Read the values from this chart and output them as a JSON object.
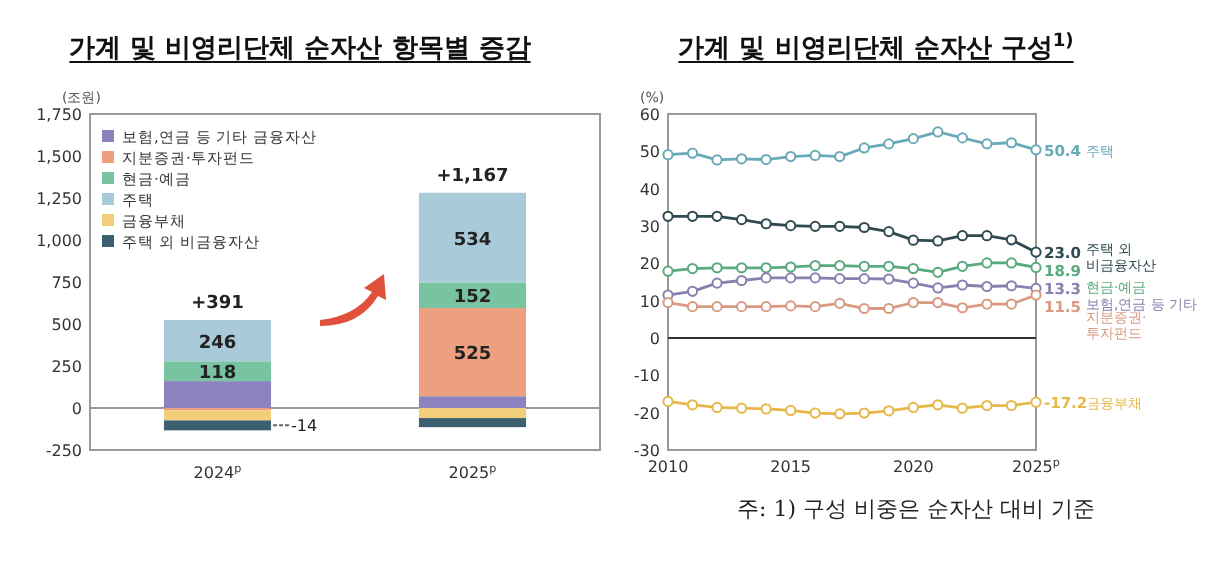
{
  "chart_data": [
    {
      "type": "bar",
      "title": "가계 및 비영리단체 순자산 항목별 증감",
      "ylabel": "(조원)",
      "stacked": true,
      "legend": "top left",
      "categories": [
        "2024$^{p}$",
        "2025$^{p}$"
      ],
      "ylim": [
        -250,
        1750
      ],
      "yticks": [
        {
          "value": -250,
          "label": "-250"
        },
        0,
        250,
        500,
        750,
        {
          "value": 1000,
          "label": "1,000"
        },
        {
          "value": 1250,
          "label": "1,250"
        },
        {
          "value": 1500,
          "label": "1,500"
        },
        {
          "value": 1750,
          "label": "1,750"
        }
      ],
      "ref_lines": [
        {
          "axis": "y",
          "value": 0,
          "color": "#999999"
        }
      ],
      "totals": [
        "+391",
        "+1,167"
      ],
      "series": [
        {
          "name": "보험,연금 등 기타 금융자산",
          "color": "#8d82c0",
          "values": [
            160,
            70
          ],
          "value_labels": [
            null,
            null
          ]
        },
        {
          "name": "지분증권·투자펀드",
          "color": "#eda07f",
          "values": [
            -14,
            525
          ],
          "value_labels": [
            "-14",
            "525"
          ]
        },
        {
          "name": "현금·예금",
          "color": "#78c3a0",
          "values": [
            118,
            152
          ],
          "value_labels": [
            "118",
            "152"
          ]
        },
        {
          "name": "주택",
          "color": "#a9cbd9",
          "values": [
            246,
            534
          ],
          "value_labels": [
            "246",
            "534"
          ]
        },
        {
          "name": "금융부채",
          "color": "#f2cd7a",
          "values": [
            -60,
            -60
          ],
          "value_labels": [
            null,
            null
          ]
        },
        {
          "name": "주택 외 비금융자산",
          "color": "#3d6070",
          "values": [
            -59,
            -54
          ],
          "value_labels": [
            null,
            null
          ]
        }
      ]
    },
    {
      "type": "line",
      "title": "가계 및 비영리단체 순자산 구성$^{1)}$",
      "ylabel": "(%)",
      "legend": false,
      "marker": "circle",
      "x": [
        2010,
        2011,
        2012,
        2013,
        2014,
        2015,
        2016,
        2017,
        2018,
        2019,
        2020,
        2021,
        2022,
        2023,
        2024,
        2025
      ],
      "xlim": [
        2010,
        2025
      ],
      "xticks": [
        2010,
        2015,
        2020,
        {
          "value": 2025,
          "label": "2025$^{p}$"
        }
      ],
      "ylim": [
        -30,
        60
      ],
      "yticks": [
        -30,
        -20,
        -10,
        0,
        10,
        20,
        30,
        40,
        50,
        60
      ],
      "ref_lines": [
        {
          "axis": "y",
          "value": 0,
          "color": "#333333"
        }
      ],
      "annotations": [
        "주: 1) 구성 비중은 순자산 대비 기준"
      ],
      "series": [
        {
          "name": "주택",
          "color": "#6aaab8",
          "values": [
            49.1,
            49.5,
            47.7,
            48.0,
            47.8,
            48.6,
            48.9,
            48.6,
            50.9,
            52.0,
            53.4,
            55.2,
            53.6,
            52.0,
            52.3,
            50.4
          ],
          "value_labels": [
            null,
            null,
            null,
            null,
            null,
            null,
            null,
            null,
            null,
            null,
            null,
            null,
            null,
            null,
            null,
            "50.4"
          ]
        },
        {
          "name": "주택 외\n비금융자산",
          "color": "#2f4a50",
          "values": [
            32.6,
            32.6,
            32.6,
            31.7,
            30.6,
            30.1,
            29.9,
            29.9,
            29.6,
            28.5,
            26.2,
            26.0,
            27.4,
            27.4,
            26.3,
            23.0
          ],
          "value_labels": [
            null,
            null,
            null,
            null,
            null,
            null,
            null,
            null,
            null,
            null,
            null,
            null,
            null,
            null,
            null,
            "23.0"
          ]
        },
        {
          "name": "현금·예금",
          "color": "#5aaa7e",
          "values": [
            17.9,
            18.6,
            18.8,
            18.8,
            18.8,
            19.0,
            19.4,
            19.4,
            19.2,
            19.2,
            18.6,
            17.6,
            19.2,
            20.1,
            20.1,
            18.9
          ],
          "value_labels": [
            null,
            null,
            null,
            null,
            null,
            null,
            null,
            null,
            null,
            null,
            null,
            null,
            null,
            null,
            null,
            "18.9"
          ]
        },
        {
          "name": "보험,연금 등 기타",
          "color": "#8a80b0",
          "values": [
            11.5,
            12.5,
            14.7,
            15.4,
            16.1,
            16.1,
            16.1,
            15.9,
            15.9,
            15.8,
            14.7,
            13.4,
            14.2,
            13.8,
            14.0,
            13.3
          ],
          "value_labels": [
            null,
            null,
            null,
            null,
            null,
            null,
            null,
            null,
            null,
            null,
            null,
            null,
            null,
            null,
            null,
            "13.3"
          ]
        },
        {
          "name": "지분증권·\n투자펀드",
          "color": "#d89a80",
          "values": [
            9.5,
            8.4,
            8.4,
            8.4,
            8.4,
            8.6,
            8.4,
            9.3,
            7.9,
            7.9,
            9.5,
            9.5,
            8.1,
            9.1,
            9.1,
            11.5
          ],
          "value_labels": [
            null,
            null,
            null,
            null,
            null,
            null,
            null,
            null,
            null,
            null,
            null,
            null,
            null,
            null,
            null,
            "11.5"
          ]
        },
        {
          "name": "금융부채",
          "color": "#e6b84a",
          "values": [
            -17.0,
            -17.9,
            -18.6,
            -18.8,
            -19.0,
            -19.4,
            -20.1,
            -20.3,
            -20.1,
            -19.5,
            -18.6,
            -17.9,
            -18.8,
            -18.1,
            -18.1,
            -17.2
          ],
          "value_labels": [
            null,
            null,
            null,
            null,
            null,
            null,
            null,
            null,
            null,
            null,
            null,
            null,
            null,
            null,
            null,
            "-17.2"
          ]
        }
      ]
    }
  ]
}
